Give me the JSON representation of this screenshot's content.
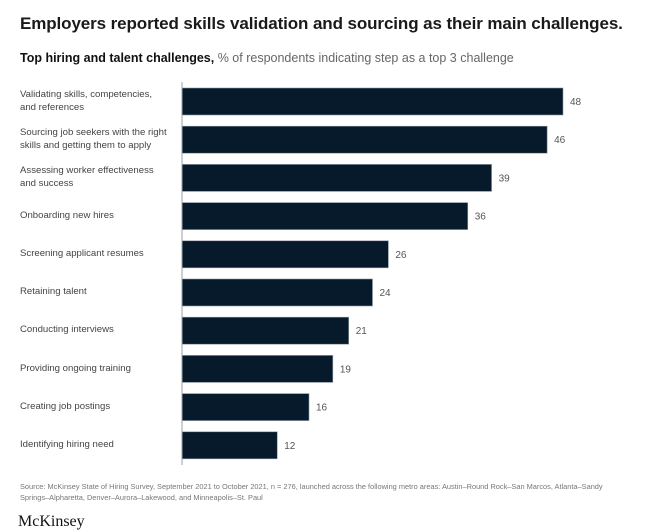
{
  "header": {
    "title": "Employers reported skills validation and sourcing as their main challenges.",
    "subtitle_bold": "Top hiring and talent challenges,",
    "subtitle_normal": "% of respondents indicating step as a top 3 challenge"
  },
  "chart_data": {
    "type": "bar",
    "orientation": "horizontal",
    "title": "Top hiring and talent challenges",
    "xlabel": "% of respondents indicating step as a top 3 challenge",
    "ylabel": "",
    "xlim": [
      0,
      48
    ],
    "grid": false,
    "categories": [
      "Validating skills, competencies, and references",
      "Sourcing job seekers with the right skills and getting them to apply",
      "Assessing worker effectiveness and success",
      "Onboarding new hires",
      "Screening applicant resumes",
      "Retaining talent",
      "Conducting interviews",
      "Providing ongoing training",
      "Creating job postings",
      "Identifying hiring need"
    ],
    "values": [
      48,
      46,
      39,
      36,
      26,
      24,
      21,
      19,
      16,
      12
    ],
    "bar_color": "#061a2b",
    "axis_color": "#9aa0a6"
  },
  "footer": {
    "source": "Source: McKinsey State of Hiring Survey, September 2021 to October 2021, n = 276, launched across the following metro areas: Austin–Round Rock–San Marcos, Atlanta–Sandy Springs–Alpharetta, Denver–Aurora–Lakewood, and Minneapolis–St. Paul",
    "logo": "McKinsey"
  }
}
